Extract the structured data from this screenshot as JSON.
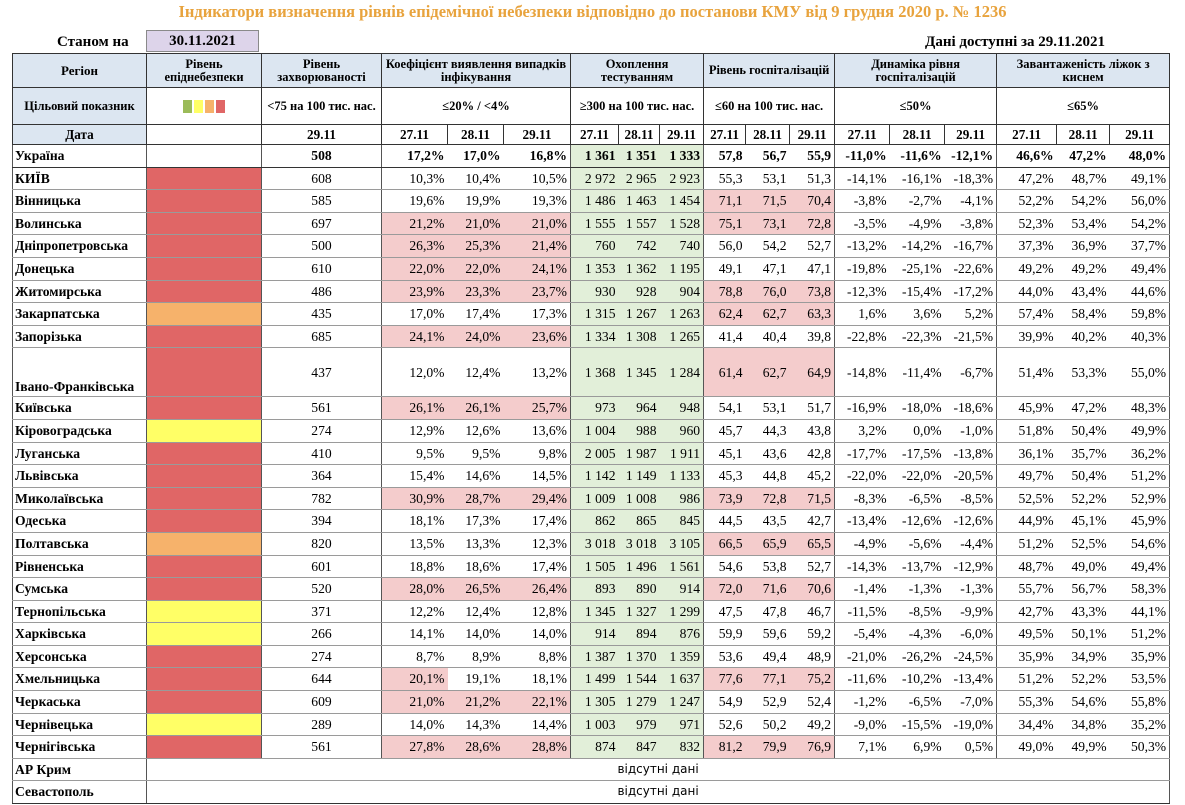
{
  "title": "Індикатори визначення рівнів епідемічної небезпеки відповідно до постанови КМУ від 9 грудня 2020 р. № 1236",
  "as_of_label": "Станом на",
  "as_of_date": "30.11.2021",
  "data_available": "Дані доступні за  29.11.2021",
  "headers": {
    "region": "Регіон",
    "level": "Рівень епіднебезпеки",
    "incidence": "Рівень захворюваності",
    "detection": "Коефіцієнт виявлення випадків інфікування",
    "testing": "Охоплення тестуванням",
    "hosp": "Рівень госпіталізацій",
    "dynamics": "Динаміка рівня госпіталізацій",
    "beds": "Завантаженість ліжок з киснем"
  },
  "targets": {
    "label": "Цільовий показник",
    "incidence": "<75 на 100 тис. нас.",
    "detection": "≤20% / <4%",
    "testing": "≥300 на 100 тис. нас.",
    "hosp": "≤60 на 100 тис. нас.",
    "dynamics": "≤50%",
    "beds": "≤65%"
  },
  "legend_colors": [
    "#9bbb59",
    "#ffff66",
    "#f6b26b",
    "#e06666"
  ],
  "date_label": "Дата",
  "dates": {
    "incidence": "29.11",
    "d1": "27.11",
    "d2": "28.11",
    "d3": "29.11"
  },
  "colors": {
    "red": "#e06666",
    "orange": "#f6b26b",
    "yellow": "#ffff66",
    "green_cell": "#e2efd9",
    "pink_cell": "#f4cccc",
    "header": "#dce6f1",
    "title": "#e8a33d"
  },
  "missing_data": "відсутні дані",
  "rows": [
    {
      "region": "Україна",
      "level": "",
      "inc": "508",
      "det": [
        "17,2%",
        "17,0%",
        "16,8%"
      ],
      "test": [
        "1 361",
        "1 351",
        "1 333"
      ],
      "hosp": [
        "57,8",
        "56,7",
        "55,9"
      ],
      "dyn": [
        "-11,0%",
        "-11,6%",
        "-12,1%"
      ],
      "beds": [
        "46,6%",
        "47,2%",
        "48,0%"
      ],
      "det_hl": [
        0,
        0,
        0
      ],
      "hosp_hl": [
        0,
        0,
        0
      ]
    },
    {
      "region": "КИЇВ",
      "level": "red",
      "inc": "608",
      "det": [
        "10,3%",
        "10,4%",
        "10,5%"
      ],
      "test": [
        "2 972",
        "2 965",
        "2 923"
      ],
      "hosp": [
        "55,3",
        "53,1",
        "51,3"
      ],
      "dyn": [
        "-14,1%",
        "-16,1%",
        "-18,3%"
      ],
      "beds": [
        "47,2%",
        "48,7%",
        "49,1%"
      ],
      "det_hl": [
        0,
        0,
        0
      ],
      "hosp_hl": [
        0,
        0,
        0
      ]
    },
    {
      "region": "Вінницька",
      "level": "red",
      "inc": "585",
      "det": [
        "19,6%",
        "19,9%",
        "19,3%"
      ],
      "test": [
        "1 486",
        "1 463",
        "1 454"
      ],
      "hosp": [
        "71,1",
        "71,5",
        "70,4"
      ],
      "dyn": [
        "-3,8%",
        "-2,7%",
        "-4,1%"
      ],
      "beds": [
        "52,2%",
        "54,2%",
        "56,0%"
      ],
      "det_hl": [
        0,
        0,
        0
      ],
      "hosp_hl": [
        1,
        1,
        1
      ]
    },
    {
      "region": "Волинська",
      "level": "red",
      "inc": "697",
      "det": [
        "21,2%",
        "21,0%",
        "21,0%"
      ],
      "test": [
        "1 555",
        "1 557",
        "1 528"
      ],
      "hosp": [
        "75,1",
        "73,1",
        "72,8"
      ],
      "dyn": [
        "-3,5%",
        "-4,9%",
        "-3,8%"
      ],
      "beds": [
        "52,3%",
        "53,4%",
        "54,2%"
      ],
      "det_hl": [
        1,
        1,
        1
      ],
      "hosp_hl": [
        1,
        1,
        1
      ]
    },
    {
      "region": "Дніпропетровська",
      "level": "red",
      "inc": "500",
      "det": [
        "26,3%",
        "25,3%",
        "21,4%"
      ],
      "test": [
        "760",
        "742",
        "740"
      ],
      "hosp": [
        "56,0",
        "54,2",
        "52,7"
      ],
      "dyn": [
        "-13,2%",
        "-14,2%",
        "-16,7%"
      ],
      "beds": [
        "37,3%",
        "36,9%",
        "37,7%"
      ],
      "det_hl": [
        1,
        1,
        1
      ],
      "hosp_hl": [
        0,
        0,
        0
      ]
    },
    {
      "region": "Донецька",
      "level": "red",
      "inc": "610",
      "det": [
        "22,0%",
        "22,0%",
        "24,1%"
      ],
      "test": [
        "1 353",
        "1 362",
        "1 195"
      ],
      "hosp": [
        "49,1",
        "47,1",
        "47,1"
      ],
      "dyn": [
        "-19,8%",
        "-25,1%",
        "-22,6%"
      ],
      "beds": [
        "49,2%",
        "49,2%",
        "49,4%"
      ],
      "det_hl": [
        1,
        1,
        1
      ],
      "hosp_hl": [
        0,
        0,
        0
      ]
    },
    {
      "region": "Житомирська",
      "level": "red",
      "inc": "486",
      "det": [
        "23,9%",
        "23,3%",
        "23,7%"
      ],
      "test": [
        "930",
        "928",
        "904"
      ],
      "hosp": [
        "78,8",
        "76,0",
        "73,8"
      ],
      "dyn": [
        "-12,3%",
        "-15,4%",
        "-17,2%"
      ],
      "beds": [
        "44,0%",
        "43,4%",
        "44,6%"
      ],
      "det_hl": [
        1,
        1,
        1
      ],
      "hosp_hl": [
        1,
        1,
        1
      ]
    },
    {
      "region": "Закарпатська",
      "level": "orange",
      "inc": "435",
      "det": [
        "17,0%",
        "17,4%",
        "17,3%"
      ],
      "test": [
        "1 315",
        "1 267",
        "1 263"
      ],
      "hosp": [
        "62,4",
        "62,7",
        "63,3"
      ],
      "dyn": [
        "1,6%",
        "3,6%",
        "5,2%"
      ],
      "beds": [
        "57,4%",
        "58,4%",
        "59,8%"
      ],
      "det_hl": [
        0,
        0,
        0
      ],
      "hosp_hl": [
        1,
        1,
        1
      ]
    },
    {
      "region": "Запорізька",
      "level": "red",
      "inc": "685",
      "det": [
        "24,1%",
        "24,0%",
        "23,6%"
      ],
      "test": [
        "1 334",
        "1 308",
        "1 265"
      ],
      "hosp": [
        "41,4",
        "40,4",
        "39,8"
      ],
      "dyn": [
        "-22,8%",
        "-22,3%",
        "-21,5%"
      ],
      "beds": [
        "39,9%",
        "40,2%",
        "40,3%"
      ],
      "det_hl": [
        1,
        1,
        1
      ],
      "hosp_hl": [
        0,
        0,
        0
      ]
    },
    {
      "region": "Івано-Франківська",
      "level": "red",
      "inc": "437",
      "det": [
        "12,0%",
        "12,4%",
        "13,2%"
      ],
      "test": [
        "1 368",
        "1 345",
        "1 284"
      ],
      "hosp": [
        "61,4",
        "62,7",
        "64,9"
      ],
      "dyn": [
        "-14,8%",
        "-11,4%",
        "-6,7%"
      ],
      "beds": [
        "51,4%",
        "53,3%",
        "55,0%"
      ],
      "det_hl": [
        0,
        0,
        0
      ],
      "hosp_hl": [
        1,
        1,
        1
      ],
      "tall": true
    },
    {
      "region": "Київська",
      "level": "red",
      "inc": "561",
      "det": [
        "26,1%",
        "26,1%",
        "25,7%"
      ],
      "test": [
        "973",
        "964",
        "948"
      ],
      "hosp": [
        "54,1",
        "53,1",
        "51,7"
      ],
      "dyn": [
        "-16,9%",
        "-18,0%",
        "-18,6%"
      ],
      "beds": [
        "45,9%",
        "47,2%",
        "48,3%"
      ],
      "det_hl": [
        1,
        1,
        1
      ],
      "hosp_hl": [
        0,
        0,
        0
      ]
    },
    {
      "region": "Кіровоградська",
      "level": "yellow",
      "inc": "274",
      "det": [
        "12,9%",
        "12,6%",
        "13,6%"
      ],
      "test": [
        "1 004",
        "988",
        "960"
      ],
      "hosp": [
        "45,7",
        "44,3",
        "43,8"
      ],
      "dyn": [
        "3,2%",
        "0,0%",
        "-1,0%"
      ],
      "beds": [
        "51,8%",
        "50,4%",
        "49,9%"
      ],
      "det_hl": [
        0,
        0,
        0
      ],
      "hosp_hl": [
        0,
        0,
        0
      ]
    },
    {
      "region": "Луганська",
      "level": "red",
      "inc": "410",
      "det": [
        "9,5%",
        "9,5%",
        "9,8%"
      ],
      "test": [
        "2 005",
        "1 987",
        "1 911"
      ],
      "hosp": [
        "45,1",
        "43,6",
        "42,8"
      ],
      "dyn": [
        "-17,7%",
        "-17,5%",
        "-13,8%"
      ],
      "beds": [
        "36,1%",
        "35,7%",
        "36,2%"
      ],
      "det_hl": [
        0,
        0,
        0
      ],
      "hosp_hl": [
        0,
        0,
        0
      ]
    },
    {
      "region": "Львівська",
      "level": "red",
      "inc": "364",
      "det": [
        "15,4%",
        "14,6%",
        "14,5%"
      ],
      "test": [
        "1 142",
        "1 149",
        "1 133"
      ],
      "hosp": [
        "45,3",
        "44,8",
        "45,2"
      ],
      "dyn": [
        "-22,0%",
        "-22,0%",
        "-20,5%"
      ],
      "beds": [
        "49,7%",
        "50,4%",
        "51,2%"
      ],
      "det_hl": [
        0,
        0,
        0
      ],
      "hosp_hl": [
        0,
        0,
        0
      ]
    },
    {
      "region": "Миколаївська",
      "level": "red",
      "inc": "782",
      "det": [
        "30,9%",
        "28,7%",
        "29,4%"
      ],
      "test": [
        "1 009",
        "1 008",
        "986"
      ],
      "hosp": [
        "73,9",
        "72,8",
        "71,5"
      ],
      "dyn": [
        "-8,3%",
        "-6,5%",
        "-8,5%"
      ],
      "beds": [
        "52,5%",
        "52,2%",
        "52,9%"
      ],
      "det_hl": [
        1,
        1,
        1
      ],
      "hosp_hl": [
        1,
        1,
        1
      ]
    },
    {
      "region": "Одеська",
      "level": "red",
      "inc": "394",
      "det": [
        "18,1%",
        "17,3%",
        "17,4%"
      ],
      "test": [
        "862",
        "865",
        "845"
      ],
      "hosp": [
        "44,5",
        "43,5",
        "42,7"
      ],
      "dyn": [
        "-13,4%",
        "-12,6%",
        "-12,6%"
      ],
      "beds": [
        "44,9%",
        "45,1%",
        "45,9%"
      ],
      "det_hl": [
        0,
        0,
        0
      ],
      "hosp_hl": [
        0,
        0,
        0
      ]
    },
    {
      "region": "Полтавська",
      "level": "orange",
      "inc": "820",
      "det": [
        "13,5%",
        "13,3%",
        "12,3%"
      ],
      "test": [
        "3 018",
        "3 018",
        "3 105"
      ],
      "hosp": [
        "66,5",
        "65,9",
        "65,5"
      ],
      "dyn": [
        "-4,9%",
        "-5,6%",
        "-4,4%"
      ],
      "beds": [
        "51,2%",
        "52,5%",
        "54,6%"
      ],
      "det_hl": [
        0,
        0,
        0
      ],
      "hosp_hl": [
        1,
        1,
        1
      ]
    },
    {
      "region": "Рівненська",
      "level": "red",
      "inc": "601",
      "det": [
        "18,8%",
        "18,6%",
        "17,4%"
      ],
      "test": [
        "1 505",
        "1 496",
        "1 561"
      ],
      "hosp": [
        "54,6",
        "53,8",
        "52,7"
      ],
      "dyn": [
        "-14,3%",
        "-13,7%",
        "-12,9%"
      ],
      "beds": [
        "48,7%",
        "49,0%",
        "49,4%"
      ],
      "det_hl": [
        0,
        0,
        0
      ],
      "hosp_hl": [
        0,
        0,
        0
      ]
    },
    {
      "region": "Сумська",
      "level": "red",
      "inc": "520",
      "det": [
        "28,0%",
        "26,5%",
        "26,4%"
      ],
      "test": [
        "893",
        "890",
        "914"
      ],
      "hosp": [
        "72,0",
        "71,6",
        "70,6"
      ],
      "dyn": [
        "-1,4%",
        "-1,3%",
        "-1,3%"
      ],
      "beds": [
        "55,7%",
        "56,7%",
        "58,3%"
      ],
      "det_hl": [
        1,
        1,
        1
      ],
      "hosp_hl": [
        1,
        1,
        1
      ]
    },
    {
      "region": "Тернопільська",
      "level": "yellow",
      "inc": "371",
      "det": [
        "12,2%",
        "12,4%",
        "12,8%"
      ],
      "test": [
        "1 345",
        "1 327",
        "1 299"
      ],
      "hosp": [
        "47,5",
        "47,8",
        "46,7"
      ],
      "dyn": [
        "-11,5%",
        "-8,5%",
        "-9,9%"
      ],
      "beds": [
        "42,7%",
        "43,3%",
        "44,1%"
      ],
      "det_hl": [
        0,
        0,
        0
      ],
      "hosp_hl": [
        0,
        0,
        0
      ]
    },
    {
      "region": "Харківська",
      "level": "yellow",
      "inc": "266",
      "det": [
        "14,1%",
        "14,0%",
        "14,0%"
      ],
      "test": [
        "914",
        "894",
        "876"
      ],
      "hosp": [
        "59,9",
        "59,6",
        "59,2"
      ],
      "dyn": [
        "-5,4%",
        "-4,3%",
        "-6,0%"
      ],
      "beds": [
        "49,5%",
        "50,1%",
        "51,2%"
      ],
      "det_hl": [
        0,
        0,
        0
      ],
      "hosp_hl": [
        0,
        0,
        0
      ]
    },
    {
      "region": "Херсонська",
      "level": "red",
      "inc": "274",
      "det": [
        "8,7%",
        "8,9%",
        "8,8%"
      ],
      "test": [
        "1 387",
        "1 370",
        "1 359"
      ],
      "hosp": [
        "53,6",
        "49,4",
        "48,9"
      ],
      "dyn": [
        "-21,0%",
        "-26,2%",
        "-24,5%"
      ],
      "beds": [
        "35,9%",
        "34,9%",
        "35,9%"
      ],
      "det_hl": [
        0,
        0,
        0
      ],
      "hosp_hl": [
        0,
        0,
        0
      ]
    },
    {
      "region": "Хмельницька",
      "level": "red",
      "inc": "644",
      "det": [
        "20,1%",
        "19,1%",
        "18,1%"
      ],
      "test": [
        "1 499",
        "1 544",
        "1 637"
      ],
      "hosp": [
        "77,6",
        "77,1",
        "75,2"
      ],
      "dyn": [
        "-11,6%",
        "-10,2%",
        "-13,4%"
      ],
      "beds": [
        "51,2%",
        "52,2%",
        "53,5%"
      ],
      "det_hl": [
        1,
        0,
        0
      ],
      "hosp_hl": [
        1,
        1,
        1
      ]
    },
    {
      "region": "Черкаська",
      "level": "red",
      "inc": "609",
      "det": [
        "21,0%",
        "21,2%",
        "22,1%"
      ],
      "test": [
        "1 305",
        "1 279",
        "1 247"
      ],
      "hosp": [
        "54,9",
        "52,9",
        "52,4"
      ],
      "dyn": [
        "-1,2%",
        "-6,5%",
        "-7,0%"
      ],
      "beds": [
        "55,3%",
        "54,6%",
        "55,8%"
      ],
      "det_hl": [
        1,
        1,
        1
      ],
      "hosp_hl": [
        0,
        0,
        0
      ]
    },
    {
      "region": "Чернівецька",
      "level": "yellow",
      "inc": "289",
      "det": [
        "14,0%",
        "14,3%",
        "14,4%"
      ],
      "test": [
        "1 003",
        "979",
        "971"
      ],
      "hosp": [
        "52,6",
        "50,2",
        "49,2"
      ],
      "dyn": [
        "-9,0%",
        "-15,5%",
        "-19,0%"
      ],
      "beds": [
        "34,4%",
        "34,8%",
        "35,2%"
      ],
      "det_hl": [
        0,
        0,
        0
      ],
      "hosp_hl": [
        0,
        0,
        0
      ]
    },
    {
      "region": "Чернігівська",
      "level": "red",
      "inc": "561",
      "det": [
        "27,8%",
        "28,6%",
        "28,8%"
      ],
      "test": [
        "874",
        "847",
        "832"
      ],
      "hosp": [
        "81,2",
        "79,9",
        "76,9"
      ],
      "dyn": [
        "7,1%",
        "6,9%",
        "0,5%"
      ],
      "beds": [
        "49,0%",
        "49,9%",
        "50,3%"
      ],
      "det_hl": [
        1,
        1,
        1
      ],
      "hosp_hl": [
        1,
        1,
        1
      ]
    }
  ],
  "missing_rows": [
    "АР Крим",
    "Севастополь"
  ]
}
